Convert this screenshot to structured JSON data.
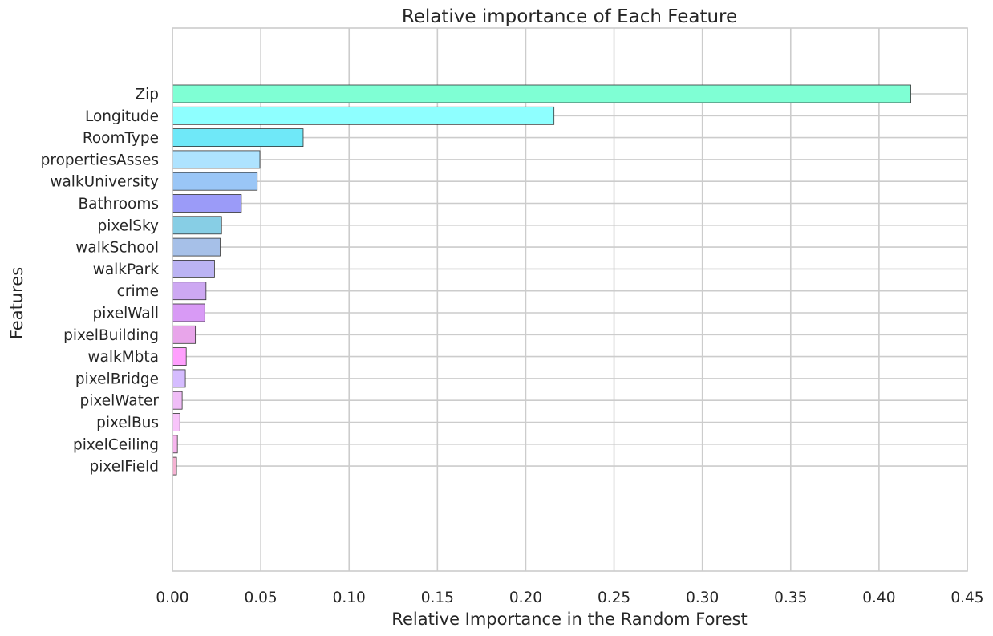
{
  "chart_data": {
    "type": "bar",
    "orientation": "horizontal",
    "title": "Relative importance of Each Feature",
    "xlabel": "Relative Importance in the Random Forest",
    "ylabel": "Features",
    "xlim": [
      0,
      0.45
    ],
    "grid": true,
    "x_ticks": [
      "0.00",
      "0.05",
      "0.10",
      "0.15",
      "0.20",
      "0.25",
      "0.30",
      "0.35",
      "0.40",
      "0.45"
    ],
    "categories": [
      "Zip",
      "Longitude",
      "RoomType",
      "propertiesAsses",
      "walkUniversity",
      "Bathrooms",
      "pixelSky",
      "walkSchool",
      "walkPark",
      "crime",
      "pixelWall",
      "pixelBuilding",
      "walkMbta",
      "pixelBridge",
      "pixelWater",
      "pixelBus",
      "pixelCeiling",
      "pixelField"
    ],
    "values": [
      0.418,
      0.216,
      0.074,
      0.0495,
      0.048,
      0.039,
      0.0278,
      0.027,
      0.0238,
      0.019,
      0.0183,
      0.013,
      0.0078,
      0.0073,
      0.0055,
      0.0042,
      0.0028,
      0.0023
    ],
    "colors": [
      "#7fffd4",
      "#8effff",
      "#6fe8f8",
      "#aee3ff",
      "#9ac6f6",
      "#9b9bf8",
      "#87cee5",
      "#a6c0e8",
      "#bbb3f3",
      "#cda8f2",
      "#d89af5",
      "#e8a5ea",
      "#ff9ffd",
      "#d5bcff",
      "#f0bdf7",
      "#f8c4fa",
      "#f7b6ee",
      "#f5b2d2"
    ]
  }
}
